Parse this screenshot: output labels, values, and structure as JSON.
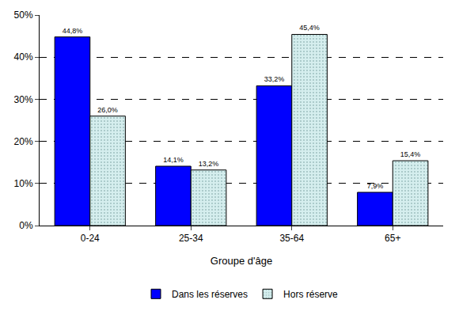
{
  "chart_data": {
    "type": "bar",
    "x_label": "Groupe d'âge",
    "categories": [
      "0-24",
      "25-34",
      "35-64",
      "65+"
    ],
    "series": [
      {
        "name": "Dans les réserves",
        "color": "#0000ff",
        "values": [
          44.8,
          14.1,
          33.2,
          7.9
        ],
        "value_labels": [
          "44,8%",
          "14,1%",
          "33,2%",
          "7,9%"
        ]
      },
      {
        "name": "Hors réserve",
        "color": "#d5eeee",
        "values": [
          26.0,
          13.2,
          45.4,
          15.4
        ],
        "value_labels": [
          "26,0%",
          "13,2%",
          "45,4%",
          "15,4%"
        ]
      }
    ],
    "ylim": [
      0,
      50
    ],
    "yticks": [
      {
        "value": 0,
        "label": "0%"
      },
      {
        "value": 10,
        "label": "10%"
      },
      {
        "value": 20,
        "label": "20%"
      },
      {
        "value": 30,
        "label": "30%"
      },
      {
        "value": 40,
        "label": "40%"
      },
      {
        "value": 50,
        "label": "50%"
      }
    ],
    "grid": true,
    "legend": "bottom",
    "data_labels": true
  }
}
